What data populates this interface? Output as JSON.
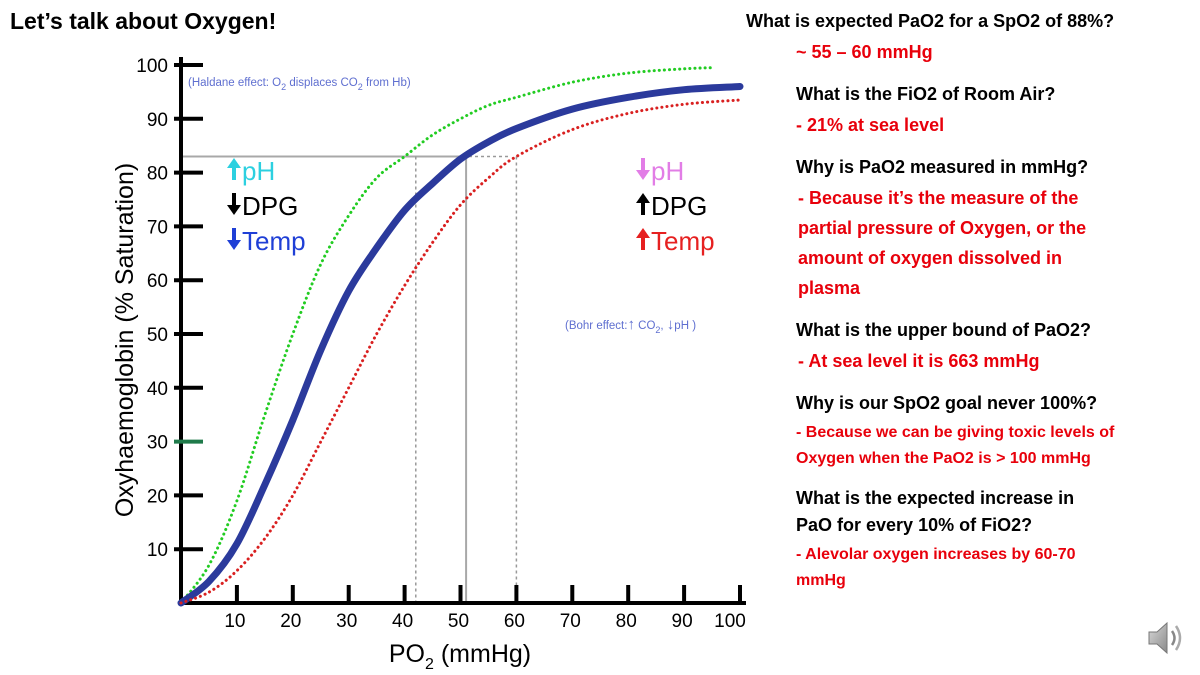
{
  "slide": {
    "title": "Let’s talk about Oxygen!"
  },
  "qa": [
    {
      "q": [
        "What is expected PaO2 for a SpO2 of 88%?"
      ],
      "a": [
        "~ 55 – 60 mmHg"
      ],
      "small": false
    },
    {
      "q": [
        "What is the FiO2 of Room Air?"
      ],
      "a": [
        "- 21% at sea level"
      ],
      "small": false
    },
    {
      "q": [
        "Why is PaO2 measured in mmHg?"
      ],
      "a": [
        "- Because it’s the measure of the",
        "partial pressure of Oxygen, or the",
        "amount of oxygen dissolved in",
        "plasma"
      ],
      "small": false
    },
    {
      "q": [
        "What is the upper bound of PaO2?"
      ],
      "a": [
        "- At sea level it is 663 mmHg"
      ],
      "small": false
    },
    {
      "q": [
        "Why is our SpO2 goal never 100%?"
      ],
      "a": [
        "- Because we can be giving toxic levels of",
        "Oxygen when the PaO2 is > 100 mmHg"
      ],
      "small": true
    },
    {
      "q": [
        "What is the expected increase in",
        "PaO for every 10% of FiO2?"
      ],
      "a": [
        "- Alevolar oxygen increases by 60-70",
        "mmHg"
      ],
      "small": true
    }
  ],
  "chart_data": {
    "type": "line",
    "xlabel": "PO2 (mmHg)",
    "ylabel": "Oxyhaemoglobin (% Saturation)",
    "xlim": [
      0,
      100
    ],
    "ylim": [
      0,
      100
    ],
    "xticks": [
      10,
      20,
      30,
      40,
      50,
      60,
      70,
      80,
      90,
      100
    ],
    "yticks": [
      10,
      20,
      30,
      40,
      50,
      60,
      70,
      80,
      90,
      100
    ],
    "series": [
      {
        "role": "left-shift",
        "style": "dotted",
        "color": "#22cc22",
        "x": [
          0,
          5,
          10,
          15,
          20,
          25,
          30,
          35,
          40,
          45,
          50,
          55,
          60,
          70,
          80,
          90,
          95
        ],
        "y": [
          0,
          7,
          19,
          35,
          50,
          63,
          72,
          79,
          83,
          87,
          90,
          92.5,
          94,
          96.8,
          98.5,
          99.3,
          99.5
        ]
      },
      {
        "role": "normal",
        "style": "solid",
        "color": "#2b3a9c",
        "x": [
          0,
          5,
          10,
          15,
          20,
          25,
          30,
          35,
          40,
          45,
          50,
          55,
          60,
          70,
          80,
          90,
          100
        ],
        "y": [
          0,
          4,
          11,
          22,
          34,
          47,
          58,
          66,
          73,
          78,
          82.5,
          85.7,
          88.2,
          91.8,
          94,
          95.4,
          96
        ]
      },
      {
        "role": "right-shift",
        "style": "dotted",
        "color": "#d92020",
        "x": [
          0,
          5,
          10,
          15,
          20,
          25,
          30,
          35,
          40,
          45,
          50,
          55,
          60,
          70,
          80,
          90,
          100
        ],
        "y": [
          0,
          2,
          6,
          12,
          20,
          30,
          40,
          50,
          59,
          67,
          74,
          79,
          83,
          88,
          91,
          92.7,
          93.5
        ]
      }
    ],
    "reference_lines": [
      {
        "y": 83,
        "x_end": 59,
        "style": "dashed"
      },
      {
        "y": 83,
        "x_end": 51,
        "style": "solid"
      },
      {
        "x": 42,
        "y_end": 83,
        "style": "dashed"
      },
      {
        "x": 51,
        "y_end": 83,
        "style": "solid"
      },
      {
        "x": 60,
        "y_end": 83,
        "style": "dashed"
      }
    ],
    "annotations": {
      "haldane": "(Haldane effect: O2 displaces CO2 from Hb)",
      "bohr": "(Bohr effect: CO2, pH )",
      "left_labels": [
        {
          "text": "pH",
          "arrow": "up",
          "color": "#2cd0e0"
        },
        {
          "text": "DPG",
          "arrow": "down",
          "color": "#000000"
        },
        {
          "text": "Temp",
          "arrow": "down",
          "color": "#1f3fd6"
        }
      ],
      "right_labels": [
        {
          "text": "pH",
          "arrow": "down",
          "color": "#e27de6"
        },
        {
          "text": "DPG",
          "arrow": "up",
          "color": "#000000"
        },
        {
          "text": "Temp",
          "arrow": "up",
          "color": "#e62020"
        }
      ]
    },
    "highlight_tick": 30
  }
}
